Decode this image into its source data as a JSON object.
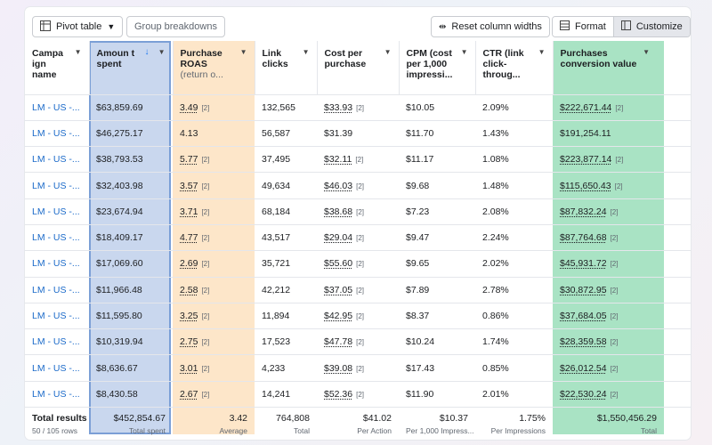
{
  "toolbar": {
    "pivot_label": "Pivot table",
    "group_label": "Group breakdowns",
    "reset_label": "Reset column widths",
    "format_label": "Format",
    "customize_label": "Customize"
  },
  "columns": [
    {
      "label": "Campa ign name",
      "sub": ""
    },
    {
      "label": "Amoun t spent",
      "sub": ""
    },
    {
      "label": "Purchase ROAS",
      "sub": "(return o..."
    },
    {
      "label": "Link clicks",
      "sub": ""
    },
    {
      "label": "Cost per purchase",
      "sub": ""
    },
    {
      "label": "CPM (cost per 1,000 impressi...",
      "sub": ""
    },
    {
      "label": "CTR (link click-throug...",
      "sub": ""
    },
    {
      "label": "Purchases conversion value",
      "sub": ""
    }
  ],
  "rows": [
    {
      "name": "LM - US -...",
      "spent": "$63,859.69",
      "roas": "3.49",
      "clicks": "132,565",
      "cpp": "$33.93",
      "cpm": "$10.05",
      "ctr": "2.09%",
      "value": "$222,671.44"
    },
    {
      "name": "LM - US -...",
      "spent": "$46,275.17",
      "roas": "4.13",
      "clicks": "56,587",
      "cpp": "$31.39",
      "cpm": "$11.70",
      "ctr": "1.43%",
      "value": "$191,254.11"
    },
    {
      "name": "LM - US -...",
      "spent": "$38,793.53",
      "roas": "5.77",
      "clicks": "37,495",
      "cpp": "$32.11",
      "cpm": "$11.17",
      "ctr": "1.08%",
      "value": "$223,877.14"
    },
    {
      "name": "LM - US -...",
      "spent": "$32,403.98",
      "roas": "3.57",
      "clicks": "49,634",
      "cpp": "$46.03",
      "cpm": "$9.68",
      "ctr": "1.48%",
      "value": "$115,650.43"
    },
    {
      "name": "LM - US -...",
      "spent": "$23,674.94",
      "roas": "3.71",
      "clicks": "68,184",
      "cpp": "$38.68",
      "cpm": "$7.23",
      "ctr": "2.08%",
      "value": "$87,832.24"
    },
    {
      "name": "LM - US -...",
      "spent": "$18,409.17",
      "roas": "4.77",
      "clicks": "43,517",
      "cpp": "$29.04",
      "cpm": "$9.47",
      "ctr": "2.24%",
      "value": "$87,764.68"
    },
    {
      "name": "LM - US -...",
      "spent": "$17,069.60",
      "roas": "2.69",
      "clicks": "35,721",
      "cpp": "$55.60",
      "cpm": "$9.65",
      "ctr": "2.02%",
      "value": "$45,931.72"
    },
    {
      "name": "LM - US -...",
      "spent": "$11,966.48",
      "roas": "2.58",
      "clicks": "42,212",
      "cpp": "$37.05",
      "cpm": "$7.89",
      "ctr": "2.78%",
      "value": "$30,872.95"
    },
    {
      "name": "LM - US -...",
      "spent": "$11,595.80",
      "roas": "3.25",
      "clicks": "11,894",
      "cpp": "$42.95",
      "cpm": "$8.37",
      "ctr": "0.86%",
      "value": "$37,684.05"
    },
    {
      "name": "LM - US -...",
      "spent": "$10,319.94",
      "roas": "2.75",
      "clicks": "17,523",
      "cpp": "$47.78",
      "cpm": "$10.24",
      "ctr": "1.74%",
      "value": "$28,359.58"
    },
    {
      "name": "LM - US -...",
      "spent": "$8,636.67",
      "roas": "3.01",
      "clicks": "4,233",
      "cpp": "$39.08",
      "cpm": "$17.43",
      "ctr": "0.85%",
      "value": "$26,012.54"
    },
    {
      "name": "LM - US -...",
      "spent": "$8,430.58",
      "roas": "2.67",
      "clicks": "14,241",
      "cpp": "$52.36",
      "cpm": "$11.90",
      "ctr": "2.01%",
      "value": "$22,530.24"
    }
  ],
  "badge": "[2]",
  "totals": {
    "title": "Total results",
    "rows_label": "50 / 105 rows",
    "spent": "$452,854.67",
    "spent_sub": "Total spent",
    "roas": "3.42",
    "roas_sub": "Average",
    "clicks": "764,808",
    "clicks_sub": "Total",
    "cpp": "$41.02",
    "cpp_sub": "Per Action",
    "cpm": "$10.37",
    "cpm_sub": "Per 1,000 Impress...",
    "ctr": "1.75%",
    "ctr_sub": "Per Impressions",
    "value": "$1,550,456.29",
    "value_sub": "Total"
  }
}
